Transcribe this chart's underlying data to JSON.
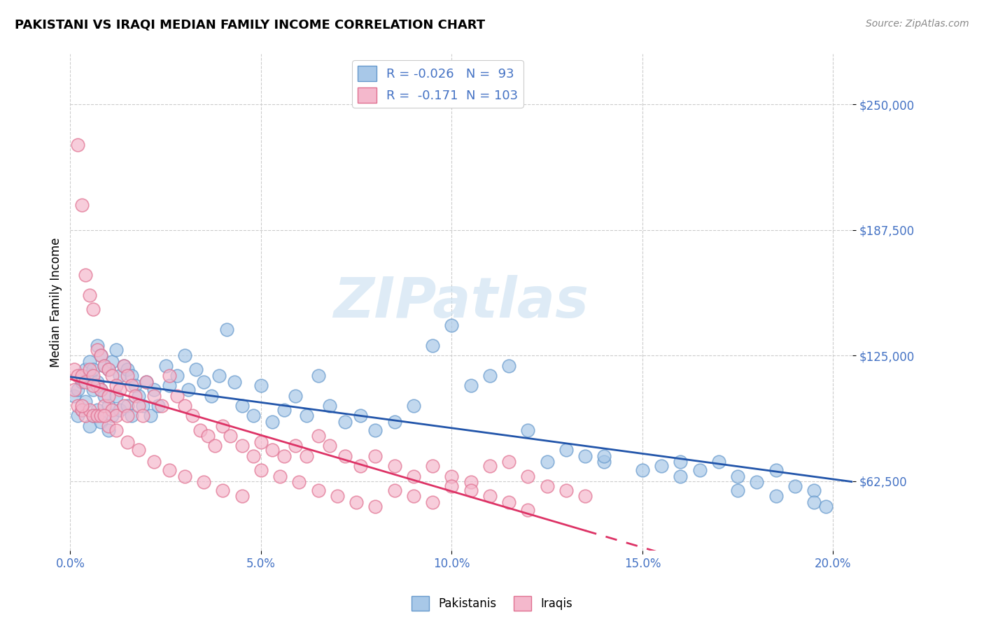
{
  "title": "PAKISTANI VS IRAQI MEDIAN FAMILY INCOME CORRELATION CHART",
  "source": "Source: ZipAtlas.com",
  "ylabel": "Median Family Income",
  "yticks": [
    62500,
    125000,
    187500,
    250000
  ],
  "ytick_labels": [
    "$62,500",
    "$125,000",
    "$187,500",
    "$250,000"
  ],
  "xlim": [
    0.0,
    0.205
  ],
  "ylim": [
    28000,
    275000
  ],
  "pakistani_color": "#a8c8e8",
  "pakistani_edge_color": "#6699cc",
  "iraqi_color": "#f4b8cc",
  "iraqi_edge_color": "#e07090",
  "pakistani_line_color": "#2255aa",
  "iraqi_line_color": "#dd3366",
  "watermark": "ZIPatlas",
  "watermark_color": "#c8dff0",
  "tick_color": "#4472c4",
  "legend_text_color": "#4472c4",
  "pakistani_x": [
    0.001,
    0.002,
    0.002,
    0.003,
    0.003,
    0.004,
    0.004,
    0.005,
    0.005,
    0.005,
    0.006,
    0.006,
    0.006,
    0.007,
    0.007,
    0.007,
    0.008,
    0.008,
    0.008,
    0.009,
    0.009,
    0.01,
    0.01,
    0.01,
    0.011,
    0.011,
    0.012,
    0.012,
    0.013,
    0.013,
    0.014,
    0.015,
    0.015,
    0.016,
    0.016,
    0.017,
    0.018,
    0.019,
    0.02,
    0.021,
    0.022,
    0.023,
    0.025,
    0.026,
    0.028,
    0.03,
    0.031,
    0.033,
    0.035,
    0.037,
    0.039,
    0.041,
    0.043,
    0.045,
    0.048,
    0.05,
    0.053,
    0.056,
    0.059,
    0.062,
    0.065,
    0.068,
    0.072,
    0.076,
    0.08,
    0.085,
    0.09,
    0.095,
    0.1,
    0.105,
    0.11,
    0.115,
    0.12,
    0.125,
    0.13,
    0.135,
    0.14,
    0.15,
    0.155,
    0.16,
    0.165,
    0.17,
    0.175,
    0.18,
    0.185,
    0.19,
    0.195,
    0.14,
    0.16,
    0.175,
    0.185,
    0.195,
    0.198
  ],
  "pakistani_y": [
    105000,
    108000,
    95000,
    112000,
    98000,
    118000,
    102000,
    122000,
    115000,
    90000,
    108000,
    118000,
    95000,
    130000,
    112000,
    98000,
    125000,
    108000,
    92000,
    120000,
    105000,
    118000,
    100000,
    88000,
    122000,
    95000,
    128000,
    105000,
    115000,
    98000,
    120000,
    118000,
    100000,
    115000,
    95000,
    110000,
    105000,
    100000,
    112000,
    95000,
    108000,
    100000,
    120000,
    110000,
    115000,
    125000,
    108000,
    118000,
    112000,
    105000,
    115000,
    138000,
    112000,
    100000,
    95000,
    110000,
    92000,
    98000,
    105000,
    95000,
    115000,
    100000,
    92000,
    95000,
    88000,
    92000,
    100000,
    130000,
    140000,
    110000,
    115000,
    120000,
    88000,
    72000,
    78000,
    75000,
    72000,
    68000,
    70000,
    72000,
    68000,
    72000,
    65000,
    62000,
    68000,
    60000,
    58000,
    75000,
    65000,
    58000,
    55000,
    52000,
    50000
  ],
  "iraqi_x": [
    0.001,
    0.001,
    0.002,
    0.002,
    0.002,
    0.003,
    0.003,
    0.003,
    0.004,
    0.004,
    0.004,
    0.005,
    0.005,
    0.005,
    0.006,
    0.006,
    0.006,
    0.007,
    0.007,
    0.007,
    0.008,
    0.008,
    0.008,
    0.009,
    0.009,
    0.01,
    0.01,
    0.01,
    0.011,
    0.011,
    0.012,
    0.012,
    0.013,
    0.014,
    0.014,
    0.015,
    0.015,
    0.016,
    0.017,
    0.018,
    0.019,
    0.02,
    0.022,
    0.024,
    0.026,
    0.028,
    0.03,
    0.032,
    0.034,
    0.036,
    0.038,
    0.04,
    0.042,
    0.045,
    0.048,
    0.05,
    0.053,
    0.056,
    0.059,
    0.062,
    0.065,
    0.068,
    0.072,
    0.076,
    0.08,
    0.085,
    0.09,
    0.095,
    0.1,
    0.105,
    0.11,
    0.115,
    0.12,
    0.125,
    0.13,
    0.135,
    0.003,
    0.006,
    0.009,
    0.012,
    0.015,
    0.018,
    0.022,
    0.026,
    0.03,
    0.035,
    0.04,
    0.045,
    0.05,
    0.055,
    0.06,
    0.065,
    0.07,
    0.075,
    0.08,
    0.085,
    0.09,
    0.095,
    0.1,
    0.105,
    0.11,
    0.115,
    0.12
  ],
  "iraqi_y": [
    118000,
    108000,
    230000,
    115000,
    100000,
    200000,
    115000,
    98000,
    165000,
    112000,
    95000,
    155000,
    118000,
    98000,
    148000,
    115000,
    95000,
    128000,
    110000,
    95000,
    125000,
    108000,
    95000,
    120000,
    100000,
    118000,
    105000,
    90000,
    115000,
    98000,
    110000,
    95000,
    108000,
    120000,
    100000,
    115000,
    95000,
    110000,
    105000,
    100000,
    95000,
    112000,
    105000,
    100000,
    115000,
    105000,
    100000,
    95000,
    88000,
    85000,
    80000,
    90000,
    85000,
    80000,
    75000,
    82000,
    78000,
    75000,
    80000,
    75000,
    85000,
    80000,
    75000,
    70000,
    75000,
    70000,
    65000,
    70000,
    65000,
    62000,
    70000,
    72000,
    65000,
    60000,
    58000,
    55000,
    100000,
    110000,
    95000,
    88000,
    82000,
    78000,
    72000,
    68000,
    65000,
    62000,
    58000,
    55000,
    68000,
    65000,
    62000,
    58000,
    55000,
    52000,
    50000,
    58000,
    55000,
    52000,
    60000,
    58000,
    55000,
    52000,
    48000
  ]
}
